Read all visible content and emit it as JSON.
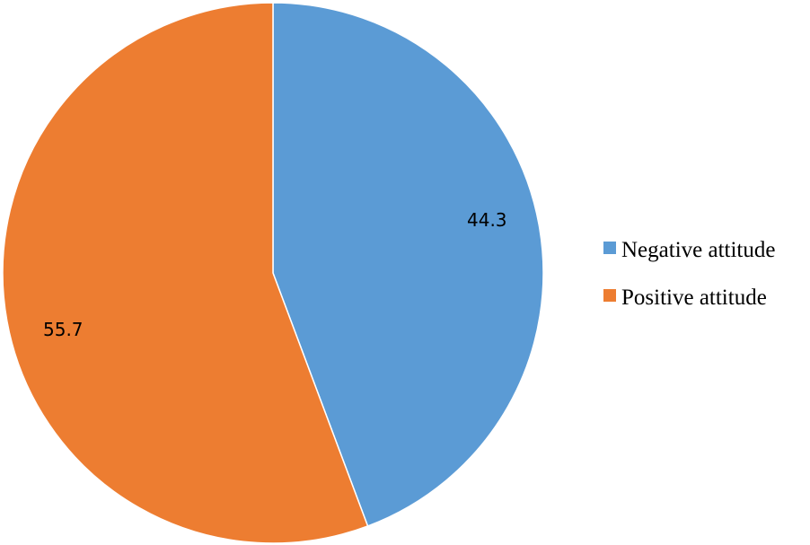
{
  "chart_data": {
    "type": "pie",
    "categories": [
      "Negative attitude",
      "Positive attitude"
    ],
    "values": [
      44.3,
      55.7
    ],
    "colors": [
      "#5b9bd5",
      "#ed7d31"
    ],
    "data_labels": [
      "44.3",
      "55.7"
    ],
    "start_angle_deg": 0,
    "direction": "clockwise",
    "legend": {
      "position": "right",
      "entries": [
        "Negative attitude",
        "Positive attitude"
      ]
    }
  }
}
